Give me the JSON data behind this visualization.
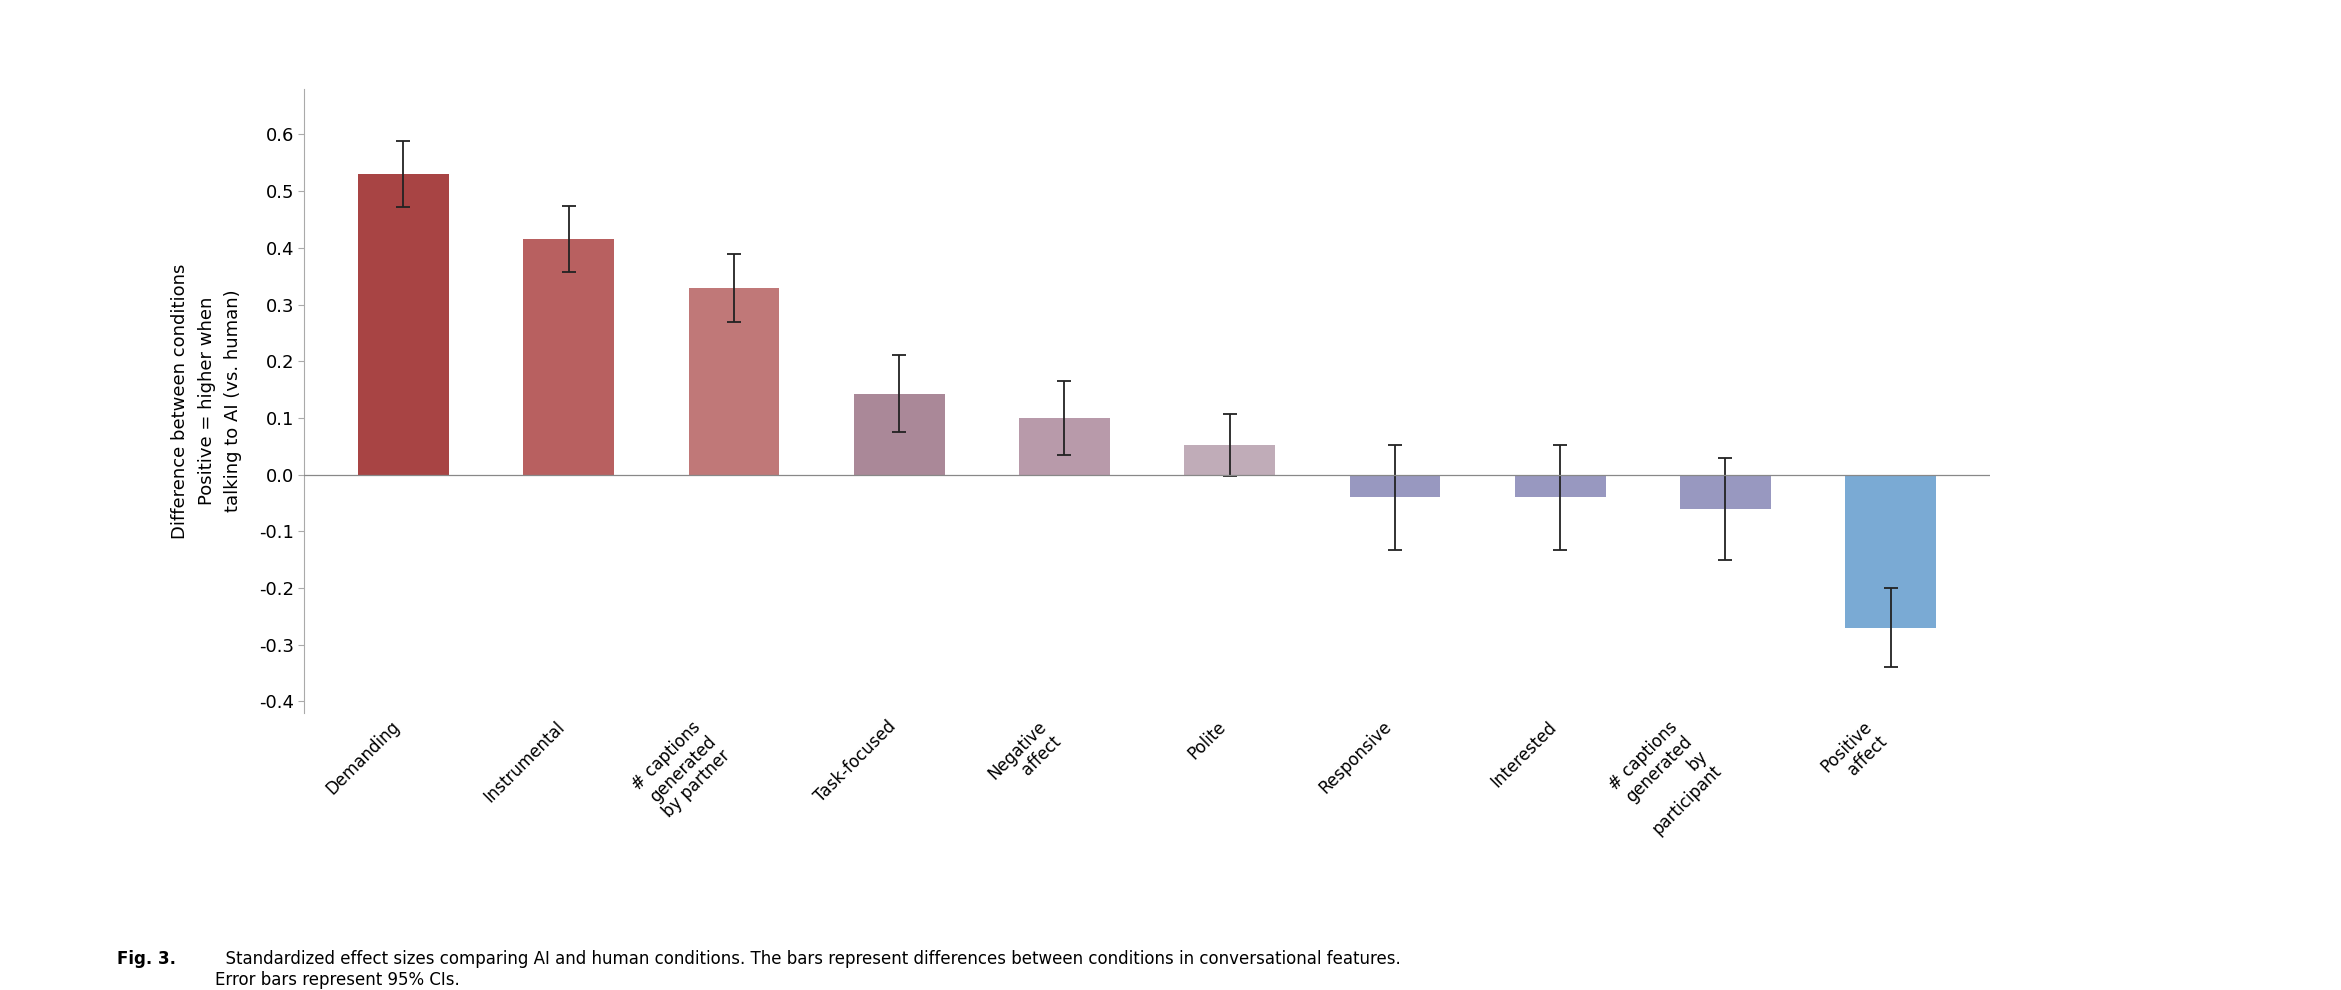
{
  "categories": [
    "Demanding",
    "Instrumental",
    "# captions\ngenerated\nby partner",
    "Task-focused",
    "Negative\naffect",
    "Polite",
    "Responsive",
    "Interested",
    "# captions\ngenerated\nby\nparticipant",
    "Positive\naffect"
  ],
  "values": [
    0.53,
    0.415,
    0.33,
    0.143,
    0.1,
    0.052,
    -0.04,
    -0.04,
    -0.06,
    -0.27
  ],
  "errors": [
    0.058,
    0.058,
    0.06,
    0.068,
    0.065,
    0.055,
    0.092,
    0.092,
    0.09,
    0.07
  ],
  "bar_colors": [
    "#a84444",
    "#b86060",
    "#c07878",
    "#aa8898",
    "#b89aaa",
    "#c0acb8",
    "#9898c0",
    "#9898c0",
    "#9898c0",
    "#7aaad4"
  ],
  "ylabel": "Difference between conditions\nPositive = higher when\ntalking to AI (vs. human)",
  "ylim": [
    -0.42,
    0.68
  ],
  "yticks": [
    -0.4,
    -0.3,
    -0.2,
    -0.1,
    0.0,
    0.1,
    0.2,
    0.3,
    0.4,
    0.5,
    0.6
  ],
  "yticklabels": [
    "-0.4",
    "-0.3",
    "-0.2",
    "-0.1",
    "0.0",
    "0.1",
    "0.2",
    "0.3",
    "0.4",
    "0.5",
    "0.6"
  ],
  "caption_bold": "Fig. 3.",
  "caption_normal": "  Standardized effect sizes comparing AI and human conditions. The bars represent differences between conditions in conversational features.\nError bars represent 95% CIs.",
  "background_color": "#ffffff",
  "bar_width": 0.55
}
